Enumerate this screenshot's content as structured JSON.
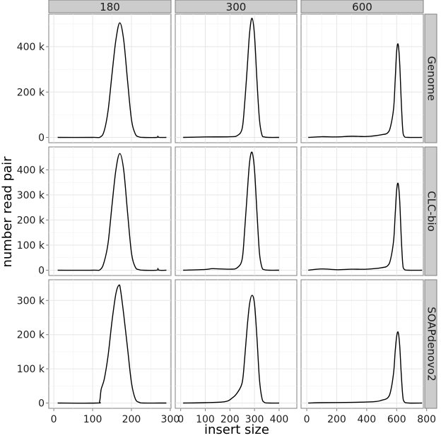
{
  "chart_data": {
    "type": "line",
    "facet_grid": true,
    "xlabel": "insert size",
    "ylabel": "number read pair",
    "columns": [
      "180",
      "300",
      "600"
    ],
    "rows": [
      "Genome",
      "CLC-bio",
      "SOAPdenovo2"
    ],
    "xlim_by_column": [
      [
        0,
        300
      ],
      [
        0,
        450
      ],
      [
        0,
        800
      ]
    ],
    "xticks_by_column": [
      [
        0,
        100,
        200,
        300
      ],
      [
        0,
        100,
        200,
        300,
        400
      ],
      [
        0,
        200,
        400,
        600,
        800
      ]
    ],
    "xtick_labels_by_column": [
      [
        "0",
        "100",
        "200",
        "300"
      ],
      [
        "0",
        "100",
        "200",
        "300",
        "400"
      ],
      [
        "0",
        "200",
        "400",
        "600",
        "800"
      ]
    ],
    "ylim_by_row": [
      [
        0,
        520000
      ],
      [
        0,
        470000
      ],
      [
        0,
        345000
      ]
    ],
    "yticks_by_row": [
      [
        0,
        200000,
        400000
      ],
      [
        0,
        100000,
        200000,
        300000,
        400000
      ],
      [
        0,
        100000,
        200000,
        300000
      ]
    ],
    "ytick_labels_by_row": [
      [
        "0",
        "200 k",
        "400 k"
      ],
      [
        "0",
        "100 k",
        "200 k",
        "300 k",
        "400 k"
      ],
      [
        "0",
        "100 k",
        "200 k",
        "300 k"
      ]
    ],
    "grid": true,
    "series": [
      {
        "row": 0,
        "col": 0,
        "x": [
          10,
          100,
          120,
          130,
          140,
          150,
          160,
          170,
          180,
          190,
          200,
          210,
          220,
          230,
          265,
          268,
          271,
          290
        ],
        "y": [
          0,
          0,
          2000,
          30000,
          120000,
          280000,
          430000,
          505000,
          430000,
          250000,
          80000,
          15000,
          2000,
          0,
          0,
          5000,
          0,
          0
        ]
      },
      {
        "row": 0,
        "col": 1,
        "x": [
          10,
          100,
          200,
          230,
          250,
          260,
          270,
          280,
          290,
          300,
          310,
          320,
          330,
          340,
          360,
          400
        ],
        "y": [
          0,
          2000,
          3000,
          8000,
          40000,
          150000,
          300000,
          460000,
          525000,
          450000,
          250000,
          80000,
          12000,
          2000,
          0,
          0
        ]
      },
      {
        "row": 0,
        "col": 2,
        "x": [
          10,
          100,
          200,
          300,
          400,
          500,
          540,
          560,
          580,
          590,
          600,
          610,
          620,
          630,
          640,
          650,
          680,
          770
        ],
        "y": [
          0,
          3000,
          2000,
          5000,
          4000,
          12000,
          20000,
          50000,
          130000,
          250000,
          380000,
          410000,
          330000,
          170000,
          40000,
          5000,
          0,
          0
        ]
      },
      {
        "row": 1,
        "col": 0,
        "x": [
          10,
          100,
          120,
          130,
          140,
          150,
          160,
          170,
          180,
          190,
          200,
          210,
          220,
          230,
          265,
          268,
          271,
          290
        ],
        "y": [
          0,
          0,
          3000,
          35000,
          110000,
          260000,
          400000,
          465000,
          400000,
          230000,
          70000,
          12000,
          2000,
          0,
          0,
          7000,
          0,
          0
        ]
      },
      {
        "row": 1,
        "col": 1,
        "x": [
          10,
          100,
          130,
          200,
          230,
          250,
          260,
          270,
          280,
          290,
          300,
          310,
          320,
          330,
          340,
          360,
          400
        ],
        "y": [
          0,
          3000,
          6000,
          4000,
          10000,
          45000,
          160000,
          300000,
          430000,
          470000,
          400000,
          230000,
          70000,
          12000,
          2000,
          0,
          0
        ]
      },
      {
        "row": 1,
        "col": 2,
        "x": [
          10,
          100,
          200,
          300,
          400,
          500,
          540,
          560,
          580,
          590,
          600,
          610,
          620,
          630,
          640,
          650,
          680,
          770
        ],
        "y": [
          0,
          5000,
          2000,
          4000,
          4000,
          10000,
          18000,
          45000,
          120000,
          220000,
          320000,
          345000,
          280000,
          140000,
          30000,
          4000,
          0,
          0
        ]
      },
      {
        "row": 2,
        "col": 0,
        "x": [
          10,
          110,
          118,
          122,
          130,
          140,
          150,
          160,
          168,
          172,
          180,
          190,
          200,
          210,
          220,
          230,
          270,
          290
        ],
        "y": [
          0,
          0,
          5000,
          40000,
          70000,
          140000,
          240000,
          320000,
          345000,
          330000,
          260000,
          160000,
          60000,
          12000,
          2000,
          0,
          0,
          0
        ]
      },
      {
        "row": 2,
        "col": 1,
        "x": [
          10,
          100,
          180,
          210,
          230,
          250,
          260,
          270,
          280,
          290,
          300,
          310,
          320,
          330,
          340,
          360,
          400
        ],
        "y": [
          0,
          1000,
          4000,
          15000,
          30000,
          60000,
          130000,
          220000,
          290000,
          315000,
          290000,
          190000,
          70000,
          15000,
          2000,
          0,
          0
        ]
      },
      {
        "row": 2,
        "col": 2,
        "x": [
          10,
          100,
          300,
          450,
          500,
          540,
          560,
          580,
          590,
          600,
          610,
          620,
          630,
          640,
          650,
          680,
          770
        ],
        "y": [
          0,
          1000,
          2000,
          4000,
          8000,
          15000,
          35000,
          90000,
          150000,
          195000,
          207000,
          170000,
          90000,
          25000,
          4000,
          0,
          0
        ]
      }
    ]
  }
}
